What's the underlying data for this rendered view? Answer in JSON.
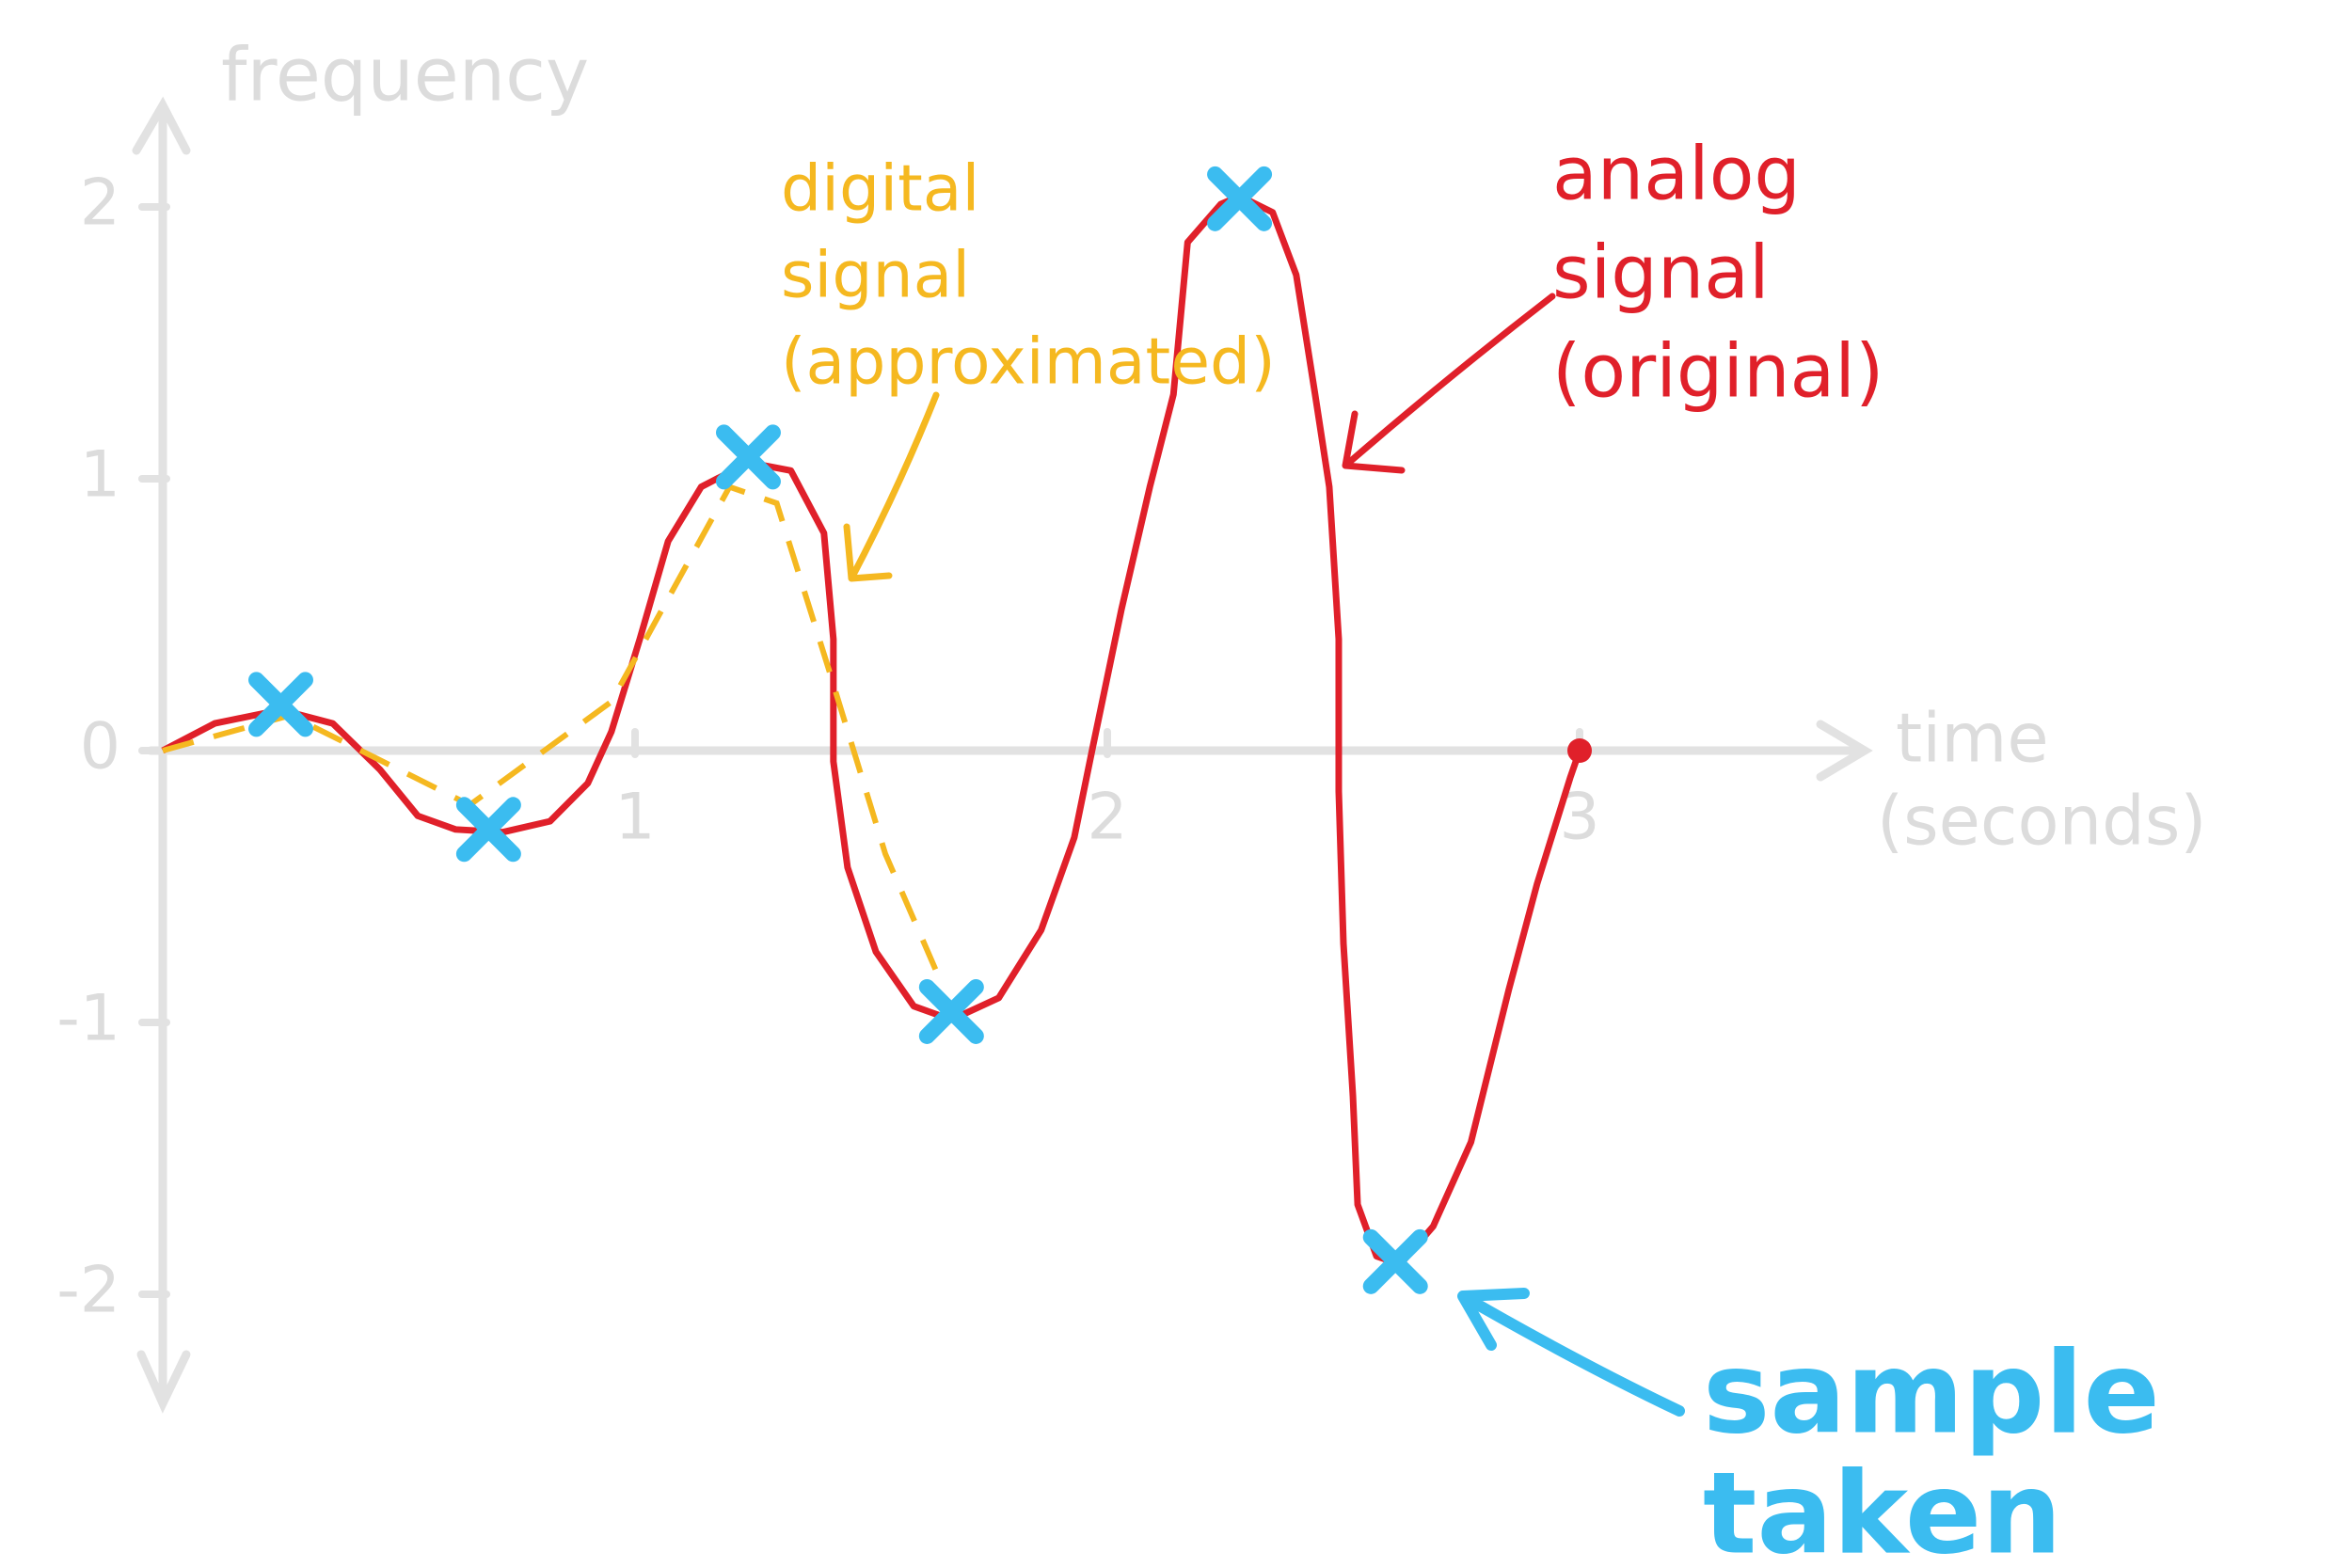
{
  "chart_data": {
    "type": "line",
    "y_label": "frequency",
    "x_label": [
      "time",
      "(seconds)"
    ],
    "xlim": [
      0,
      3.5
    ],
    "ylim": [
      -2.5,
      2.5
    ],
    "xticks": [
      1,
      2,
      3
    ],
    "yticks": [
      -2,
      -1,
      0,
      1,
      2
    ],
    "series": [
      {
        "color": "#e0202a",
        "style": "solid",
        "x": [
          0,
          0.11,
          0.25,
          0.36,
          0.46,
          0.54,
          0.62,
          0.72,
          0.82,
          0.9,
          0.95,
          1.01,
          1.07,
          1.14,
          1.24,
          1.33,
          1.4,
          1.42,
          1.42,
          1.45,
          1.51,
          1.59,
          1.67,
          1.77,
          1.86,
          1.93,
          1.97,
          2.03,
          2.09,
          2.14,
          2.17,
          2.24,
          2.28,
          2.35,
          2.4,
          2.44,
          2.47,
          2.49,
          2.49,
          2.5,
          2.52,
          2.53,
          2.57,
          2.62,
          2.69,
          2.77,
          2.85,
          2.91,
          2.98,
          3.0
        ],
        "values": [
          0,
          0.1,
          0.15,
          0.1,
          -0.07,
          -0.24,
          -0.29,
          -0.3,
          -0.26,
          -0.12,
          0.07,
          0.41,
          0.77,
          0.97,
          1.06,
          1.03,
          0.8,
          0.41,
          -0.04,
          -0.43,
          -0.74,
          -0.94,
          -0.99,
          -0.91,
          -0.66,
          -0.32,
          0.02,
          0.52,
          0.97,
          1.31,
          1.87,
          2.01,
          2.04,
          1.98,
          1.75,
          1.31,
          0.97,
          0.41,
          -0.15,
          -0.71,
          -1.27,
          -1.67,
          -1.86,
          -1.89,
          -1.75,
          -1.44,
          -0.88,
          -0.49,
          -0.1,
          0
        ]
      },
      {
        "color": "#f5b820",
        "style": "dashed",
        "x": [
          0,
          0.27,
          0.65,
          0.95,
          1.2,
          1.3,
          1.41,
          1.53,
          1.64
        ],
        "values": [
          0,
          0.13,
          -0.2,
          0.18,
          0.97,
          0.91,
          0.3,
          -0.38,
          -0.82
        ]
      },
      {
        "color": "#3bbcf0",
        "style": "cross",
        "x": [
          0.25,
          0.69,
          1.24,
          1.67,
          2.28,
          2.61
        ],
        "values": [
          0.17,
          -0.29,
          1.08,
          -0.96,
          2.03,
          -1.88
        ]
      }
    ],
    "annotations": [
      {
        "text": [
          "digital",
          "signal",
          "(approximated)"
        ],
        "color": "#f5b820"
      },
      {
        "text": [
          "analog",
          "signal",
          "(original)"
        ],
        "color": "#e0202a"
      },
      {
        "text": [
          "sample",
          "taken"
        ],
        "color": "#3bbcf0"
      }
    ]
  }
}
